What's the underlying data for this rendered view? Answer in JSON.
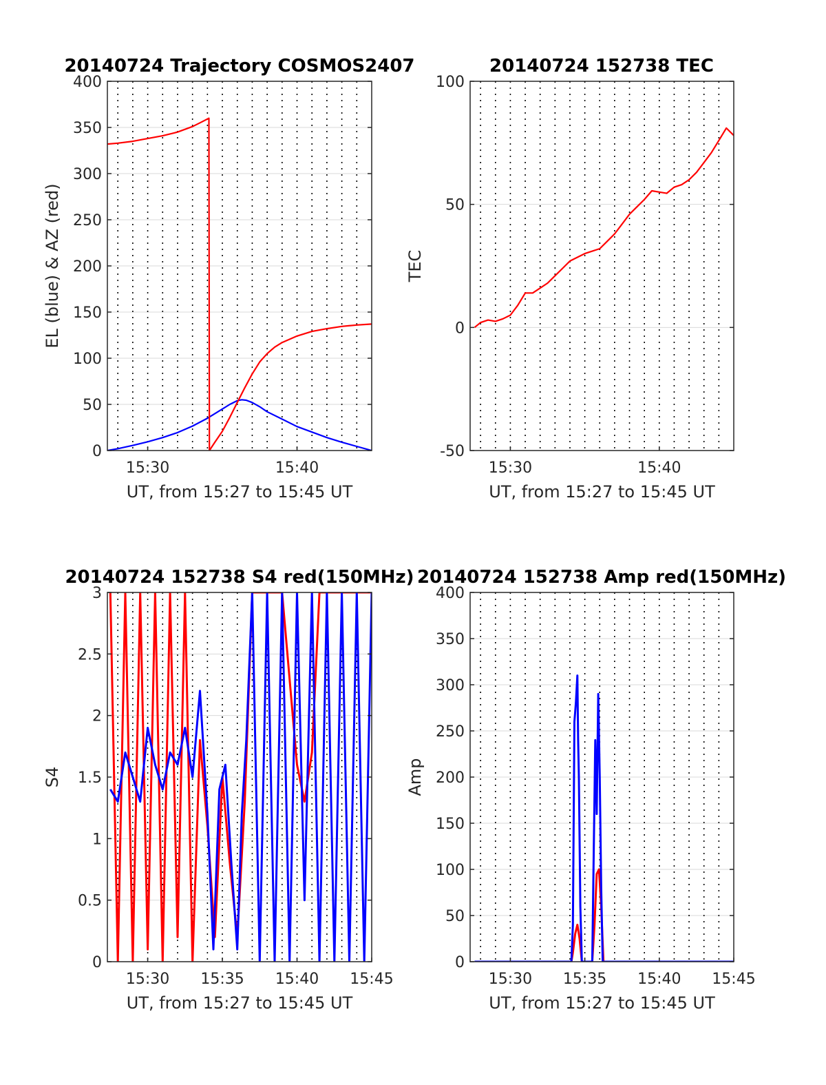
{
  "colors": {
    "red": "#ff0000",
    "blue": "#0000ff",
    "axis": "#262626",
    "grid": "#d9d9d9"
  },
  "chart_data": [
    {
      "type": "line",
      "title": "20140724 Trajectory COSMOS2407",
      "xlabel": "UT, from 15:27 to 15:45 UT",
      "ylabel": "EL (blue) & AZ (red)",
      "x_unit": "minutes of hour 15",
      "xlim": [
        27.3,
        45
      ],
      "ylim": [
        0,
        400
      ],
      "xticks": [
        {
          "value": 30,
          "label": "15:30"
        },
        {
          "value": 40,
          "label": "15:40"
        }
      ],
      "yticks": [
        0,
        50,
        100,
        150,
        200,
        250,
        300,
        350,
        400
      ],
      "grid": "dotted vertical lines every minute, light horizontal lines at y ticks",
      "series": [
        {
          "color": "blue",
          "x": [
            27.3,
            28,
            29,
            30,
            31,
            32,
            33,
            34,
            35,
            35.5,
            36,
            36.3,
            36.6,
            37,
            37.5,
            38,
            39,
            40,
            41,
            42,
            43,
            44,
            45
          ],
          "values": [
            0,
            2,
            5.5,
            9.5,
            14,
            19.5,
            26.5,
            35,
            45,
            50,
            54,
            55,
            54.5,
            52,
            47.5,
            42,
            34,
            26,
            20,
            14,
            9,
            4.5,
            0
          ]
        },
        {
          "color": "red",
          "x": [
            27.3,
            28,
            29,
            30,
            31,
            32,
            33,
            33.5,
            34.1,
            34.13,
            34.5,
            35,
            35.5,
            36,
            36.5,
            37,
            37.5,
            38,
            38.5,
            39,
            40,
            41,
            42,
            43,
            44,
            45
          ],
          "values": [
            332,
            333,
            335,
            338,
            341,
            345,
            351,
            355,
            360,
            0,
            9,
            21,
            36,
            52,
            68,
            83,
            96,
            105,
            112,
            117,
            124,
            129,
            132,
            134.5,
            136,
            137
          ]
        }
      ]
    },
    {
      "type": "line",
      "title": "20140724 152738 TEC",
      "xlabel": "UT, from 15:27 to 15:45 UT",
      "ylabel": "TEC",
      "x_unit": "minutes of hour 15",
      "xlim": [
        27.3,
        45
      ],
      "ylim": [
        -50,
        100
      ],
      "xticks": [
        {
          "value": 30,
          "label": "15:30"
        },
        {
          "value": 40,
          "label": "15:40"
        }
      ],
      "yticks": [
        -50,
        0,
        50,
        100
      ],
      "series": [
        {
          "color": "red",
          "x": [
            27.6,
            28,
            28.5,
            29,
            29.5,
            30,
            30.5,
            31,
            31.5,
            32,
            32.5,
            33,
            33.5,
            34,
            34.5,
            35,
            35.5,
            36,
            36.5,
            37,
            37.5,
            38,
            38.5,
            39,
            39.5,
            40,
            40.5,
            41,
            41.5,
            42,
            42.5,
            43,
            43.5,
            44,
            44.5,
            45
          ],
          "values": [
            0,
            2,
            3,
            2.5,
            3.5,
            5,
            9,
            14,
            14,
            16,
            18,
            21,
            24,
            27,
            28.5,
            30,
            31,
            32,
            35,
            38,
            42,
            46,
            49,
            52,
            55.5,
            55,
            54.5,
            57,
            58,
            60,
            63,
            67,
            71,
            76,
            81,
            78
          ]
        }
      ]
    },
    {
      "type": "line",
      "title": "20140724 152738 S4 red(150MHz)",
      "xlabel": "UT, from 15:27 to 15:45 UT",
      "ylabel": "S4",
      "x_unit": "minutes of hour 15",
      "xlim": [
        27.3,
        45
      ],
      "ylim": [
        0,
        3
      ],
      "xticks": [
        {
          "value": 30,
          "label": "15:30"
        },
        {
          "value": 35,
          "label": "15:35"
        },
        {
          "value": 40,
          "label": "15:40"
        },
        {
          "value": 45,
          "label": "15:45"
        }
      ],
      "yticks": [
        0,
        0.5,
        1,
        1.5,
        2,
        2.5,
        3
      ],
      "series": [
        {
          "color": "red",
          "x": [
            27.5,
            28,
            28.5,
            29,
            29.5,
            30,
            30.5,
            31,
            31.5,
            32,
            32.5,
            33,
            33.5,
            34,
            34.5,
            35,
            35.5,
            36,
            36.5,
            37,
            38,
            39,
            40,
            40.5,
            41,
            41.5,
            42,
            43,
            44,
            45
          ],
          "values": [
            3,
            0,
            3,
            0,
            3,
            0.1,
            3,
            0,
            3,
            0.2,
            3,
            0,
            1.8,
            1.1,
            0.2,
            1.5,
            0.8,
            0.2,
            1.3,
            3,
            3,
            3,
            1.6,
            1.3,
            1.7,
            3,
            3,
            3,
            3,
            3
          ]
        },
        {
          "color": "blue",
          "x": [
            27.5,
            28,
            28.5,
            29,
            29.5,
            30,
            30.5,
            31,
            31.5,
            32,
            32.5,
            33,
            33.5,
            34,
            34.4,
            34.8,
            35.2,
            35.6,
            36,
            36.3,
            36.6,
            37,
            37.5,
            38,
            38.5,
            39,
            39.5,
            40,
            40.5,
            41,
            41.5,
            42,
            42.5,
            43,
            43.5,
            44,
            44.5,
            45
          ],
          "values": [
            1.4,
            1.3,
            1.7,
            1.5,
            1.3,
            1.9,
            1.6,
            1.4,
            1.7,
            1.6,
            1.9,
            1.5,
            2.2,
            1.2,
            0.1,
            1.4,
            1.6,
            0.8,
            0.1,
            1.2,
            1.8,
            3,
            0,
            3,
            0,
            3,
            0,
            3,
            0.5,
            3,
            0,
            3,
            0,
            3,
            0,
            3,
            0,
            3
          ]
        }
      ]
    },
    {
      "type": "line",
      "title": "20140724 152738 Amp red(150MHz)",
      "xlabel": "UT, from 15:27 to 15:45 UT",
      "ylabel": "Amp",
      "x_unit": "minutes of hour 15",
      "xlim": [
        27.3,
        45
      ],
      "ylim": [
        0,
        400
      ],
      "xticks": [
        {
          "value": 30,
          "label": "15:30"
        },
        {
          "value": 35,
          "label": "15:35"
        },
        {
          "value": 40,
          "label": "15:40"
        },
        {
          "value": 45,
          "label": "15:45"
        }
      ],
      "yticks": [
        0,
        50,
        100,
        150,
        200,
        250,
        300,
        350,
        400
      ],
      "series": [
        {
          "color": "red",
          "x": [
            27.6,
            34.1,
            34.2,
            34.35,
            34.5,
            34.65,
            34.8,
            35.5,
            35.65,
            35.8,
            35.95,
            36.1,
            36.25,
            45
          ],
          "values": [
            0,
            0,
            10,
            30,
            40,
            25,
            0,
            0,
            40,
            95,
            100,
            60,
            0,
            0
          ]
        },
        {
          "color": "blue",
          "x": [
            27.6,
            34.1,
            34.2,
            34.3,
            34.4,
            34.5,
            34.55,
            34.6,
            34.7,
            34.8,
            35.5,
            35.6,
            35.7,
            35.8,
            35.9,
            36.0,
            36.1,
            36.2,
            45
          ],
          "values": [
            0,
            0,
            40,
            260,
            280,
            310,
            240,
            200,
            60,
            0,
            0,
            120,
            240,
            160,
            290,
            200,
            80,
            0,
            0
          ]
        }
      ]
    }
  ]
}
